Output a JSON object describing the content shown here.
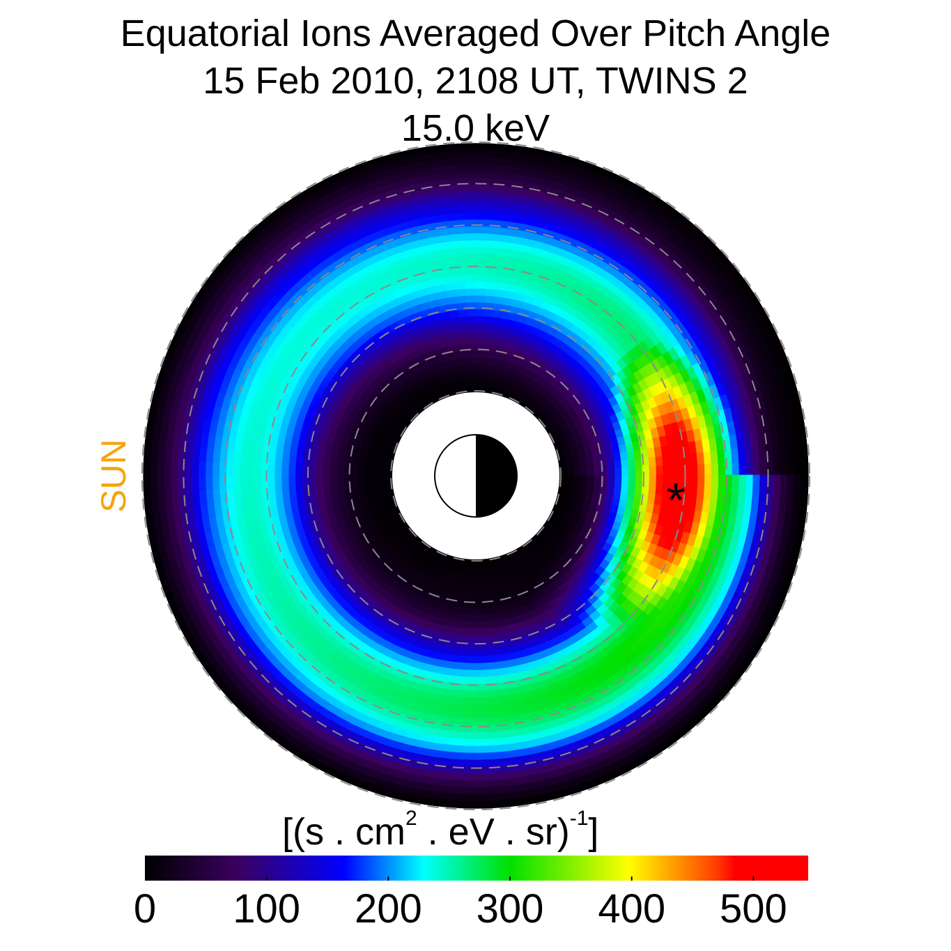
{
  "title": {
    "line1": "Equatorial Ions Averaged Over Pitch Angle",
    "line2": "15 Feb 2010, 2108 UT,  TWINS 2",
    "line3": "15.0 keV"
  },
  "sun_label": "SUN",
  "colorbar": {
    "units_main": "[(s . cm",
    "units_sup1": "2",
    "units_mid": " . eV . sr)",
    "units_sup2": "-1",
    "units_end": "]",
    "min": 0,
    "max": 545,
    "ticks": [
      "0",
      "100",
      "200",
      "300",
      "400",
      "500"
    ],
    "colors": [
      "#000000",
      "#3b0060",
      "#0000ff",
      "#00ffff",
      "#00ff00",
      "#ffff00",
      "#ff0000"
    ]
  },
  "chart_data": {
    "type": "heatmap",
    "title": "Equatorial Ions Averaged Over Pitch Angle",
    "subtitle": "15 Feb 2010, 2108 UT,  TWINS 2 — 15.0 keV",
    "projection": "polar, equatorial plane, Sun to the left",
    "radial_range_RE": [
      2,
      8
    ],
    "dashed_circles_RE": [
      2,
      3,
      4,
      5,
      6,
      7,
      8
    ],
    "value_range": [
      0,
      545
    ],
    "colorbar_label": "[(s . cm^2 . eV . sr)^-1]",
    "features": [
      {
        "name": "peak flux region",
        "location": "dusk-to-midnight side (right)",
        "approx_value": 530
      },
      {
        "name": "minimum flux region",
        "location": "inner dayside near Earth",
        "approx_value": 40
      }
    ],
    "marker": {
      "symbol": "*",
      "label": "satellite position",
      "local_time": "near midnight, slightly post",
      "radius_RE": 4.8
    },
    "earth_symbol": "day side white (left), night side black (right)"
  }
}
